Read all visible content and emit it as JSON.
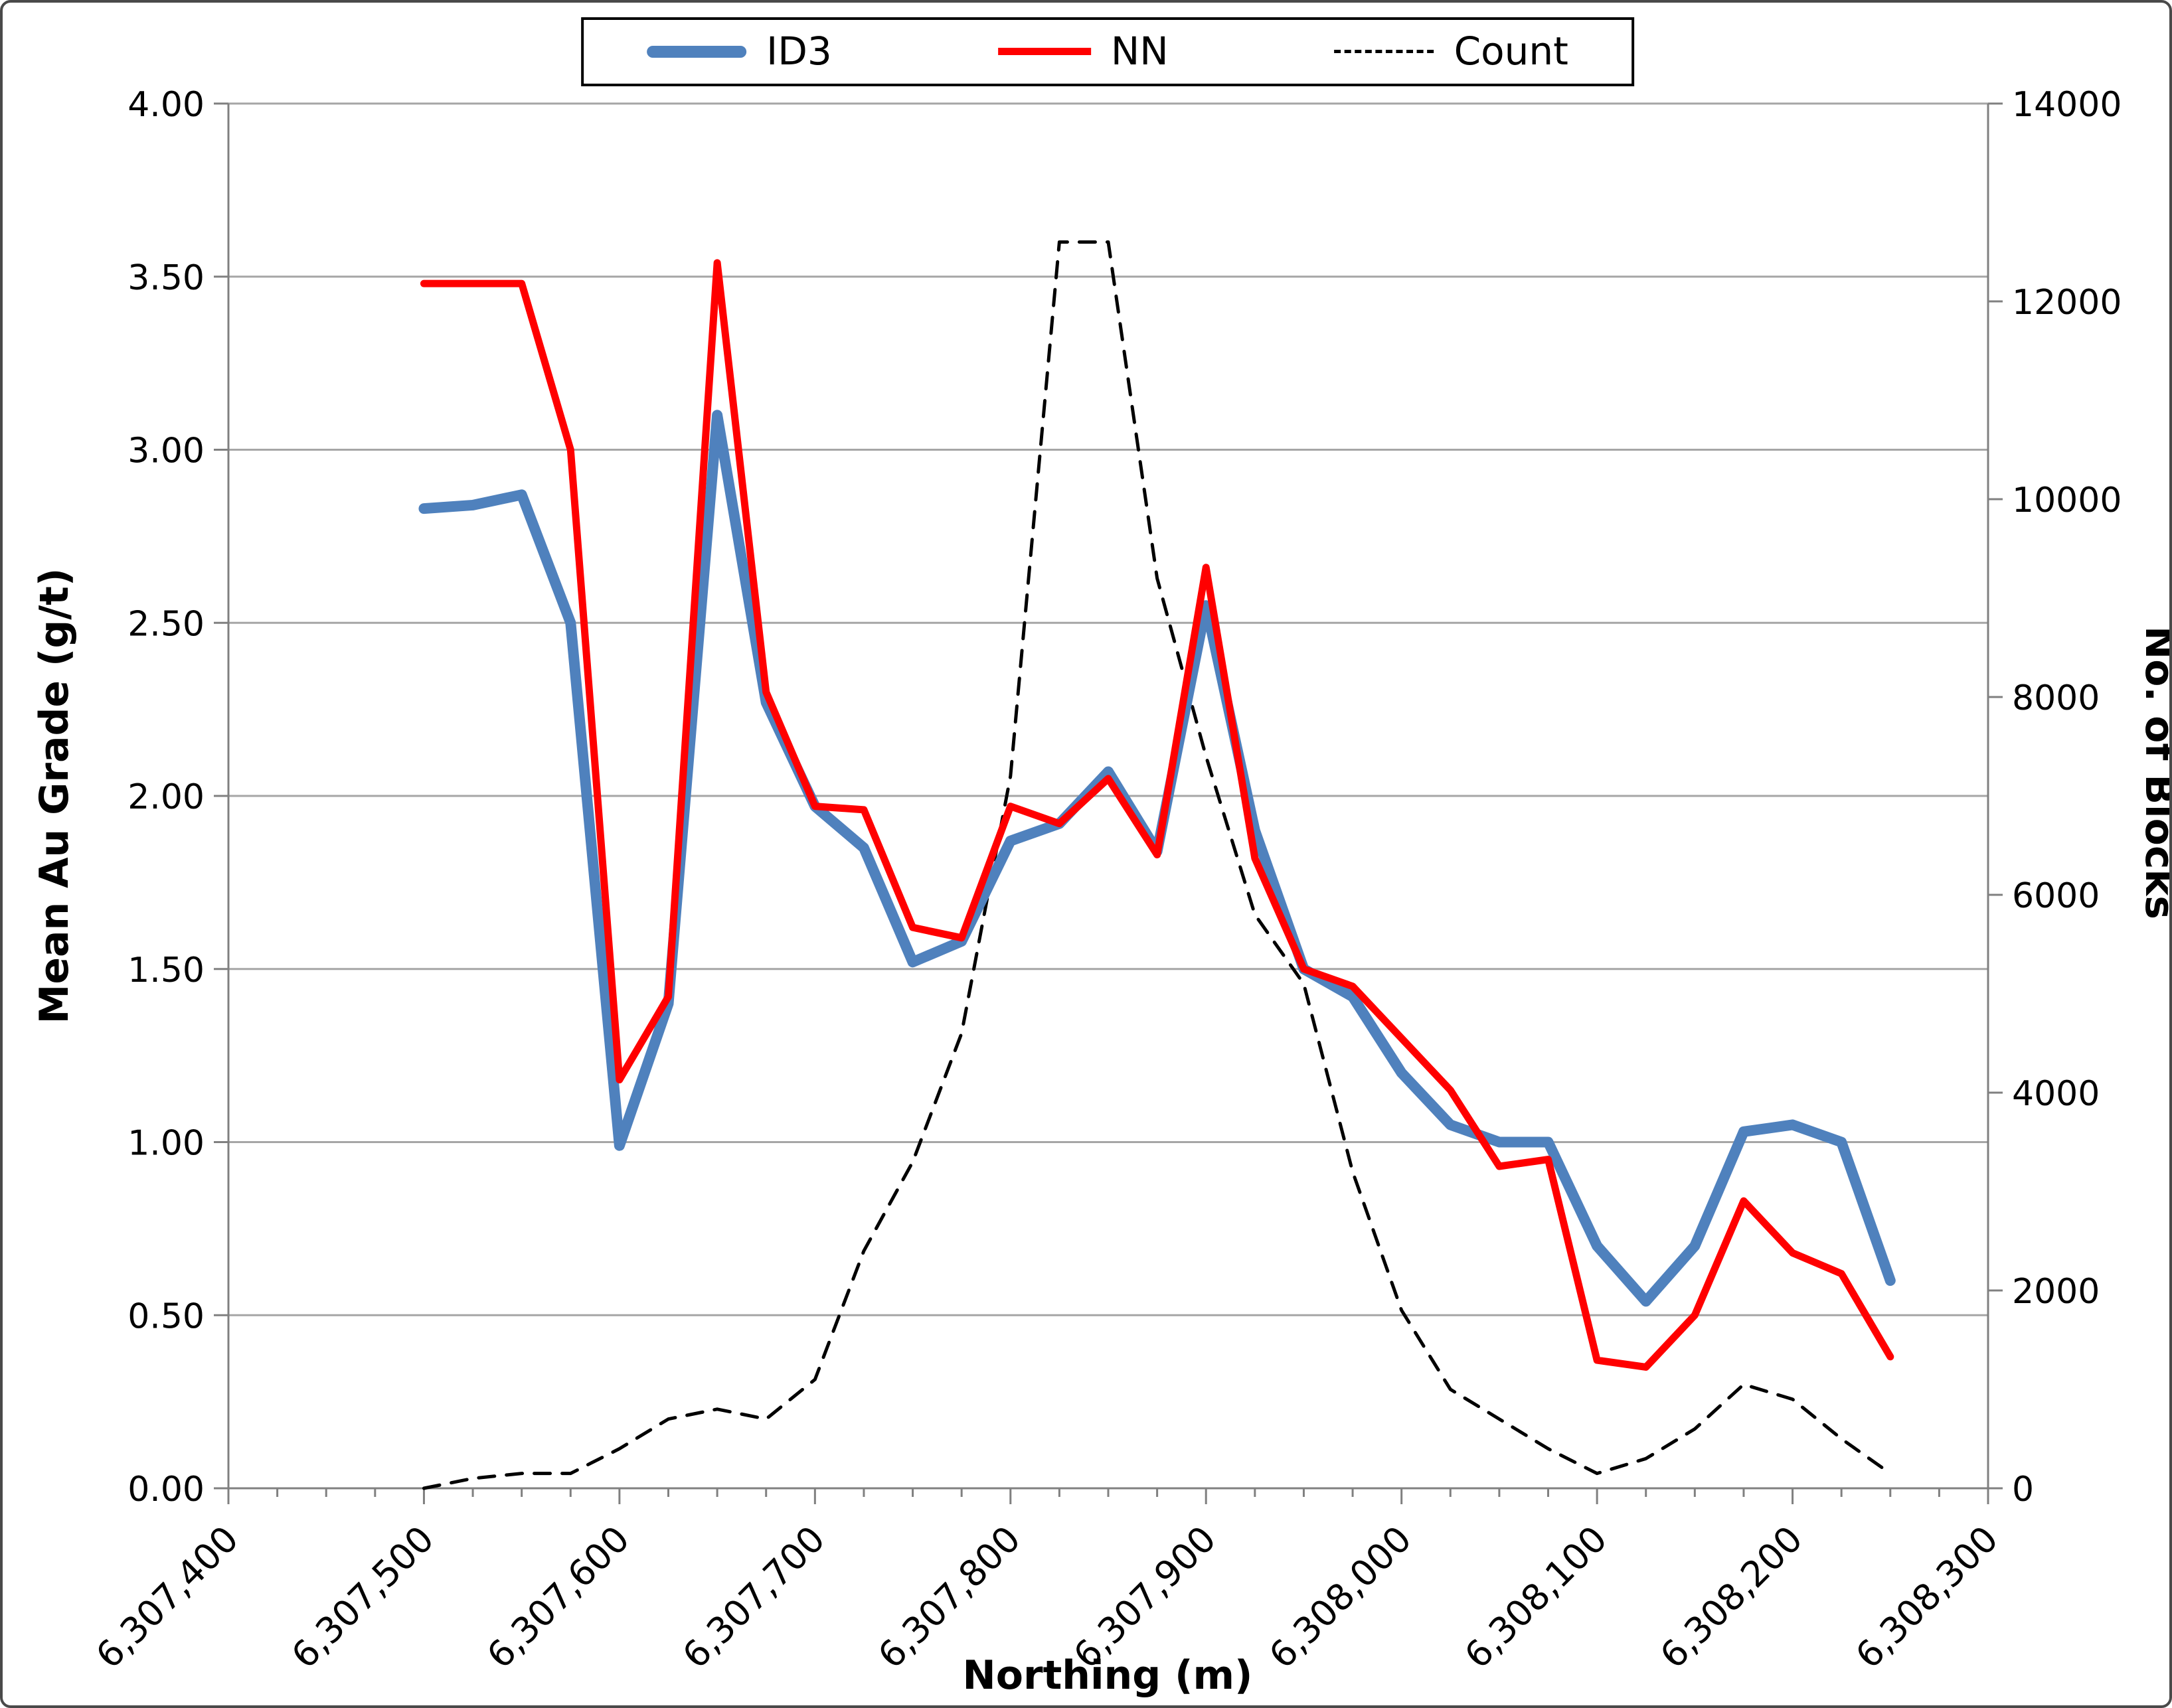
{
  "figure": {
    "background": "#FFFFFF",
    "border_color": "#4A4A4A"
  },
  "legend": {
    "position": "top-center",
    "items": [
      {
        "label": "ID3",
        "style": "thick-solid"
      },
      {
        "label": "NN",
        "style": "solid"
      },
      {
        "label": "Count",
        "style": "dashed"
      }
    ]
  },
  "chart_data": {
    "type": "line",
    "title": "",
    "xlabel": "Northing (m)",
    "ylabel_left": "Mean Au Grade (g/t)",
    "ylabel_right": "No. of Blocks",
    "legend_position": "top",
    "grid": "horizontal-only",
    "grid_color": "#A6A6A6",
    "axis_color": "#808080",
    "x_range": [
      6307400,
      6308300
    ],
    "y_left_range": [
      0,
      4
    ],
    "y_right_range": [
      0,
      14000
    ],
    "x_minor_tick_step": 25,
    "x_major_tick_step": 100,
    "x_tick_values": [
      6307400,
      6307500,
      6307600,
      6307700,
      6307800,
      6307900,
      6308000,
      6308100,
      6308200,
      6308300
    ],
    "x_tick_labels": [
      "6,307,400",
      "6,307,500",
      "6,307,600",
      "6,307,700",
      "6,307,800",
      "6,307,900",
      "6,308,000",
      "6,308,100",
      "6,308,200",
      "6,308,300"
    ],
    "y_left_tick_values": [
      0,
      0.5,
      1,
      1.5,
      2,
      2.5,
      3,
      3.5,
      4
    ],
    "y_left_tick_labels": [
      "0.00",
      "0.50",
      "1.00",
      "1.50",
      "2.00",
      "2.50",
      "3.00",
      "3.50",
      "4.00"
    ],
    "y_right_tick_values": [
      0,
      2000,
      4000,
      6000,
      8000,
      10000,
      12000,
      14000
    ],
    "y_right_tick_labels": [
      "0",
      "2000",
      "4000",
      "6000",
      "8000",
      "10000",
      "12000",
      "14000"
    ],
    "x": [
      6307500,
      6307525,
      6307550,
      6307575,
      6307600,
      6307625,
      6307650,
      6307675,
      6307700,
      6307725,
      6307750,
      6307775,
      6307800,
      6307825,
      6307850,
      6307875,
      6307900,
      6307925,
      6307950,
      6307975,
      6308000,
      6308025,
      6308050,
      6308075,
      6308100,
      6308125,
      6308150,
      6308175,
      6308200,
      6308225,
      6308250
    ],
    "series": [
      {
        "name": "ID3",
        "axis": "left",
        "color": "#4F81BD",
        "width": 16,
        "dash": null,
        "values": [
          2.83,
          2.84,
          2.87,
          2.5,
          0.99,
          1.4,
          3.1,
          2.27,
          1.97,
          1.85,
          1.52,
          1.58,
          1.87,
          1.92,
          2.07,
          1.84,
          2.55,
          1.9,
          1.5,
          1.42,
          1.2,
          1.05,
          1.0,
          1.0,
          0.7,
          0.54,
          0.7,
          1.03,
          1.05,
          1.0,
          0.6
        ]
      },
      {
        "name": "NN",
        "axis": "left",
        "color": "#FF0000",
        "width": 11,
        "dash": null,
        "values": [
          3.48,
          3.48,
          3.48,
          3.0,
          1.18,
          1.42,
          3.54,
          2.3,
          1.97,
          1.96,
          1.62,
          1.59,
          1.97,
          1.92,
          2.05,
          1.83,
          2.66,
          1.82,
          1.5,
          1.45,
          1.3,
          1.15,
          0.93,
          0.95,
          0.37,
          0.35,
          0.5,
          0.83,
          0.68,
          0.62,
          0.38
        ]
      },
      {
        "name": "Count",
        "axis": "right",
        "color": "#000000",
        "width": 5,
        "dash": "24 18",
        "values": [
          0,
          100,
          150,
          150,
          400,
          700,
          800,
          700,
          1100,
          2400,
          3300,
          4600,
          7200,
          12600,
          12600,
          9200,
          7400,
          5800,
          5100,
          3200,
          1800,
          1000,
          700,
          400,
          150,
          300,
          600,
          1050,
          900,
          500,
          150
        ]
      }
    ]
  }
}
